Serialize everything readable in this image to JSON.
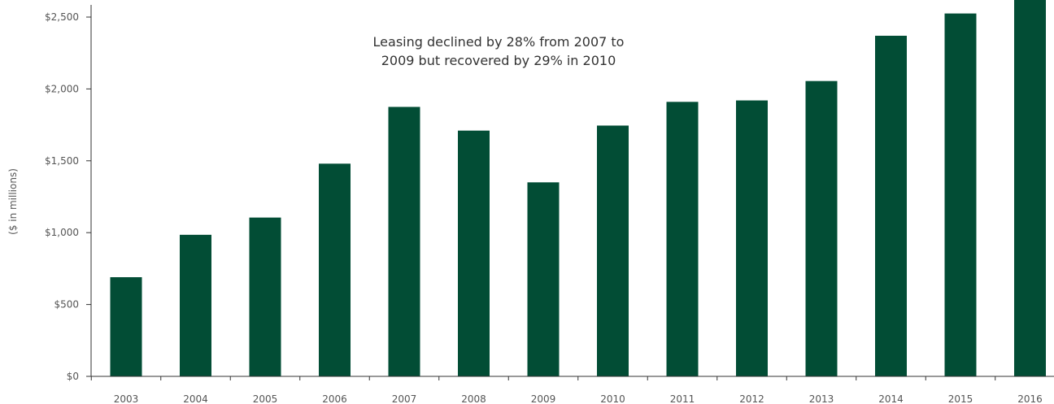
{
  "chart_data": {
    "type": "bar",
    "title": "",
    "xlabel": "",
    "ylabel": "($ in millions)",
    "categories": [
      "2003",
      "2004",
      "2005",
      "2006",
      "2007",
      "2008",
      "2009",
      "2010",
      "2011",
      "2012",
      "2013",
      "2014",
      "2015",
      "2016"
    ],
    "values": [
      690,
      985,
      1105,
      1480,
      1875,
      1710,
      1350,
      1745,
      1910,
      1920,
      2055,
      2370,
      2525,
      2650
    ],
    "ylim": [
      0,
      2500
    ],
    "yticks": [
      0,
      500,
      1000,
      1500,
      2000,
      2500
    ],
    "ytick_labels": [
      "$0",
      "$500",
      "$1,000",
      "$1,500",
      "$2,000",
      "$2,500"
    ],
    "annotation": [
      "Leasing declined by 28% from 2007 to",
      "2009 but recovered by 29% in 2010"
    ],
    "bar_color": "#024d35",
    "grid": false,
    "legend": "none"
  }
}
